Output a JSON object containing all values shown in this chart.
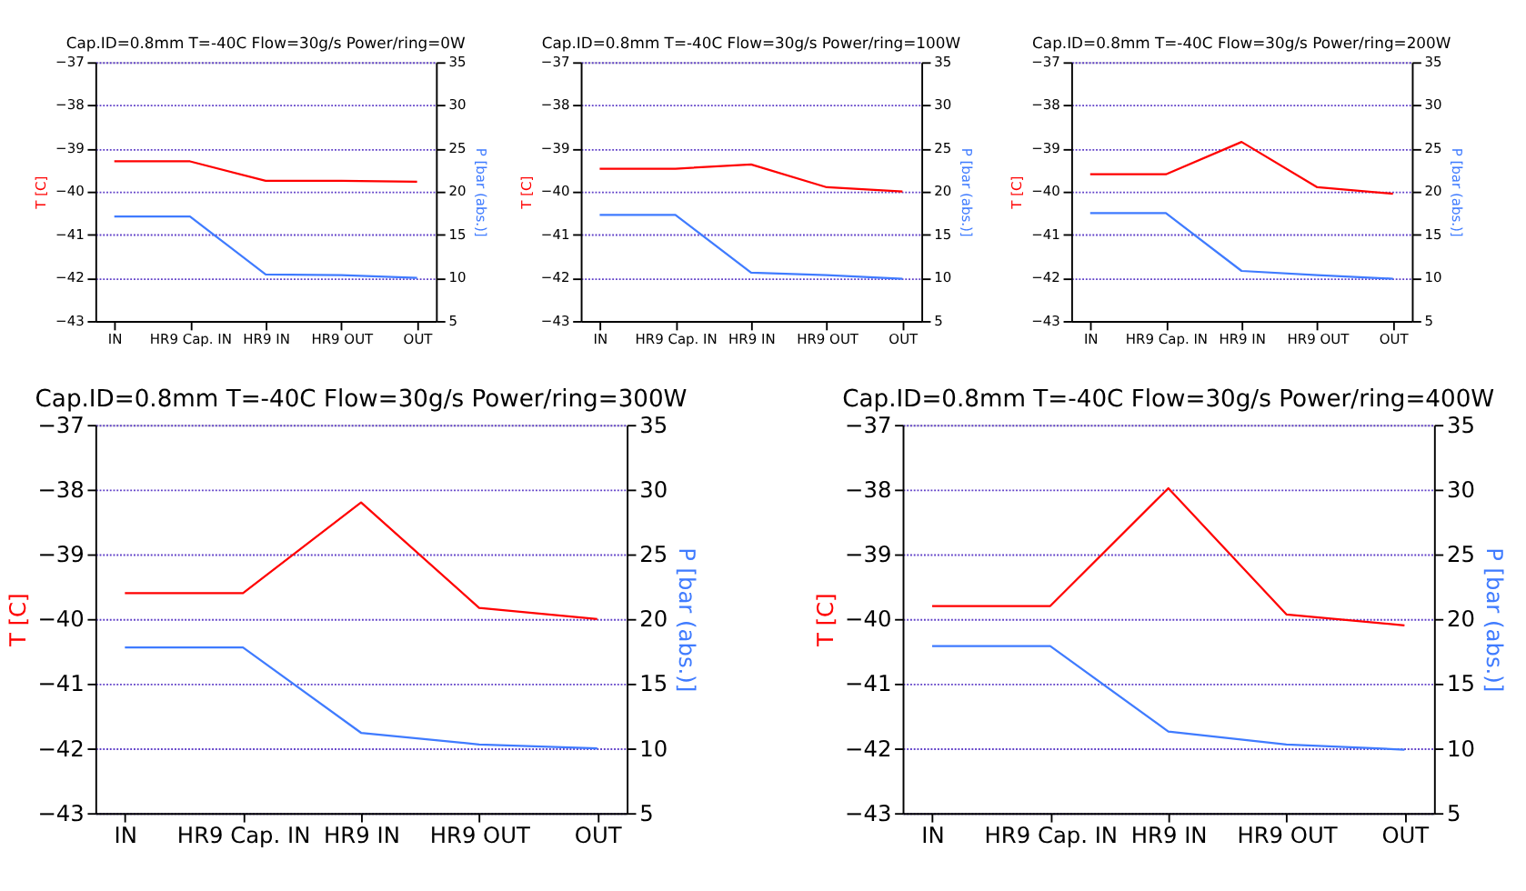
{
  "chart_data": [
    {
      "type": "line",
      "title": "Cap.ID=0.8mm   T=-40C   Flow=30g/s   Power/ring=0W",
      "ylabel": "T [C]",
      "y2label": "P [bar (abs.)]",
      "categories": [
        "IN",
        "HR9 Cap. IN",
        "HR9 IN",
        "HR9 OUT",
        "OUT"
      ],
      "ylim": [
        -43,
        -37
      ],
      "yticks": [
        -43,
        -42,
        -41,
        -40,
        -39,
        -38,
        -37
      ],
      "y2lim": [
        5,
        35
      ],
      "y2ticks": [
        5,
        10,
        15,
        20,
        25,
        30,
        35
      ],
      "grid": "y",
      "line_style": "solid",
      "series": [
        {
          "color": "#ff0000",
          "values": [
            -39.3,
            -39.3,
            -39.75,
            -39.75,
            -39.77
          ]
        },
        {
          "color": "#3f7bff",
          "axis": "y2",
          "values": [
            17.1,
            17.1,
            10.4,
            10.3,
            10.0
          ]
        }
      ]
    },
    {
      "type": "line",
      "title": "Cap.ID=0.8mm   T=-40C   Flow=30g/s   Power/ring=100W",
      "ylabel": "T [C]",
      "y2label": "P [bar (abs.)]",
      "categories": [
        "IN",
        "HR9 Cap. IN",
        "HR9 IN",
        "HR9 OUT",
        "OUT"
      ],
      "ylim": [
        -43,
        -37
      ],
      "yticks": [
        -43,
        -42,
        -41,
        -40,
        -39,
        -38,
        -37
      ],
      "y2lim": [
        5,
        35
      ],
      "y2ticks": [
        5,
        10,
        15,
        20,
        25,
        30,
        35
      ],
      "grid": "y",
      "line_style": "solid",
      "series": [
        {
          "color": "#ff0000",
          "values": [
            -39.47,
            -39.47,
            -39.37,
            -39.9,
            -40.0
          ]
        },
        {
          "color": "#3f7bff",
          "axis": "y2",
          "values": [
            17.3,
            17.3,
            10.6,
            10.3,
            9.9
          ]
        }
      ]
    },
    {
      "type": "line",
      "title": "Cap.ID=0.8mm   T=-40C   Flow=30g/s   Power/ring=200W",
      "ylabel": "T [C]",
      "y2label": "P [bar (abs.)]",
      "categories": [
        "IN",
        "HR9 Cap. IN",
        "HR9 IN",
        "HR9 OUT",
        "OUT"
      ],
      "ylim": [
        -43,
        -37
      ],
      "yticks": [
        -43,
        -42,
        -41,
        -40,
        -39,
        -38,
        -37
      ],
      "y2lim": [
        5,
        35
      ],
      "y2ticks": [
        5,
        10,
        15,
        20,
        25,
        30,
        35
      ],
      "grid": "y",
      "line_style": "solid",
      "series": [
        {
          "color": "#ff0000",
          "values": [
            -39.6,
            -39.6,
            -38.85,
            -39.9,
            -40.05
          ]
        },
        {
          "color": "#3f7bff",
          "axis": "y2",
          "values": [
            17.5,
            17.5,
            10.8,
            10.3,
            9.9
          ]
        }
      ]
    },
    {
      "type": "line",
      "title": "Cap.ID=0.8mm   T=-40C   Flow=30g/s   Power/ring=300W",
      "ylabel": "T [C]",
      "y2label": "P [bar (abs.)]",
      "categories": [
        "IN",
        "HR9 Cap. IN",
        "HR9 IN",
        "HR9 OUT",
        "OUT"
      ],
      "ylim": [
        -43,
        -37
      ],
      "yticks": [
        -43,
        -42,
        -41,
        -40,
        -39,
        -38,
        -37
      ],
      "y2lim": [
        5,
        35
      ],
      "y2ticks": [
        5,
        10,
        15,
        20,
        25,
        30,
        35
      ],
      "grid": "y",
      "line_style": "solid",
      "series": [
        {
          "color": "#ff0000",
          "values": [
            -39.6,
            -39.6,
            -38.2,
            -39.83,
            -40.0
          ]
        },
        {
          "color": "#3f7bff",
          "axis": "y2",
          "values": [
            17.8,
            17.8,
            11.2,
            10.3,
            10.0
          ]
        }
      ]
    },
    {
      "type": "line",
      "title": "Cap.ID=0.8mm   T=-40C   Flow=30g/s   Power/ring=400W",
      "ylabel": "T [C]",
      "y2label": "P [bar (abs.)]",
      "categories": [
        "IN",
        "HR9 Cap. IN",
        "HR9 IN",
        "HR9 OUT",
        "OUT"
      ],
      "ylim": [
        -43,
        -37
      ],
      "yticks": [
        -43,
        -42,
        -41,
        -40,
        -39,
        -38,
        -37
      ],
      "y2lim": [
        5,
        35
      ],
      "y2ticks": [
        5,
        10,
        15,
        20,
        25,
        30,
        35
      ],
      "grid": "y",
      "line_style": "solid",
      "series": [
        {
          "color": "#ff0000",
          "values": [
            -39.8,
            -39.8,
            -37.98,
            -39.93,
            -40.1
          ]
        },
        {
          "color": "#3f7bff",
          "axis": "y2",
          "values": [
            17.9,
            17.9,
            11.3,
            10.3,
            9.9
          ]
        }
      ]
    }
  ]
}
